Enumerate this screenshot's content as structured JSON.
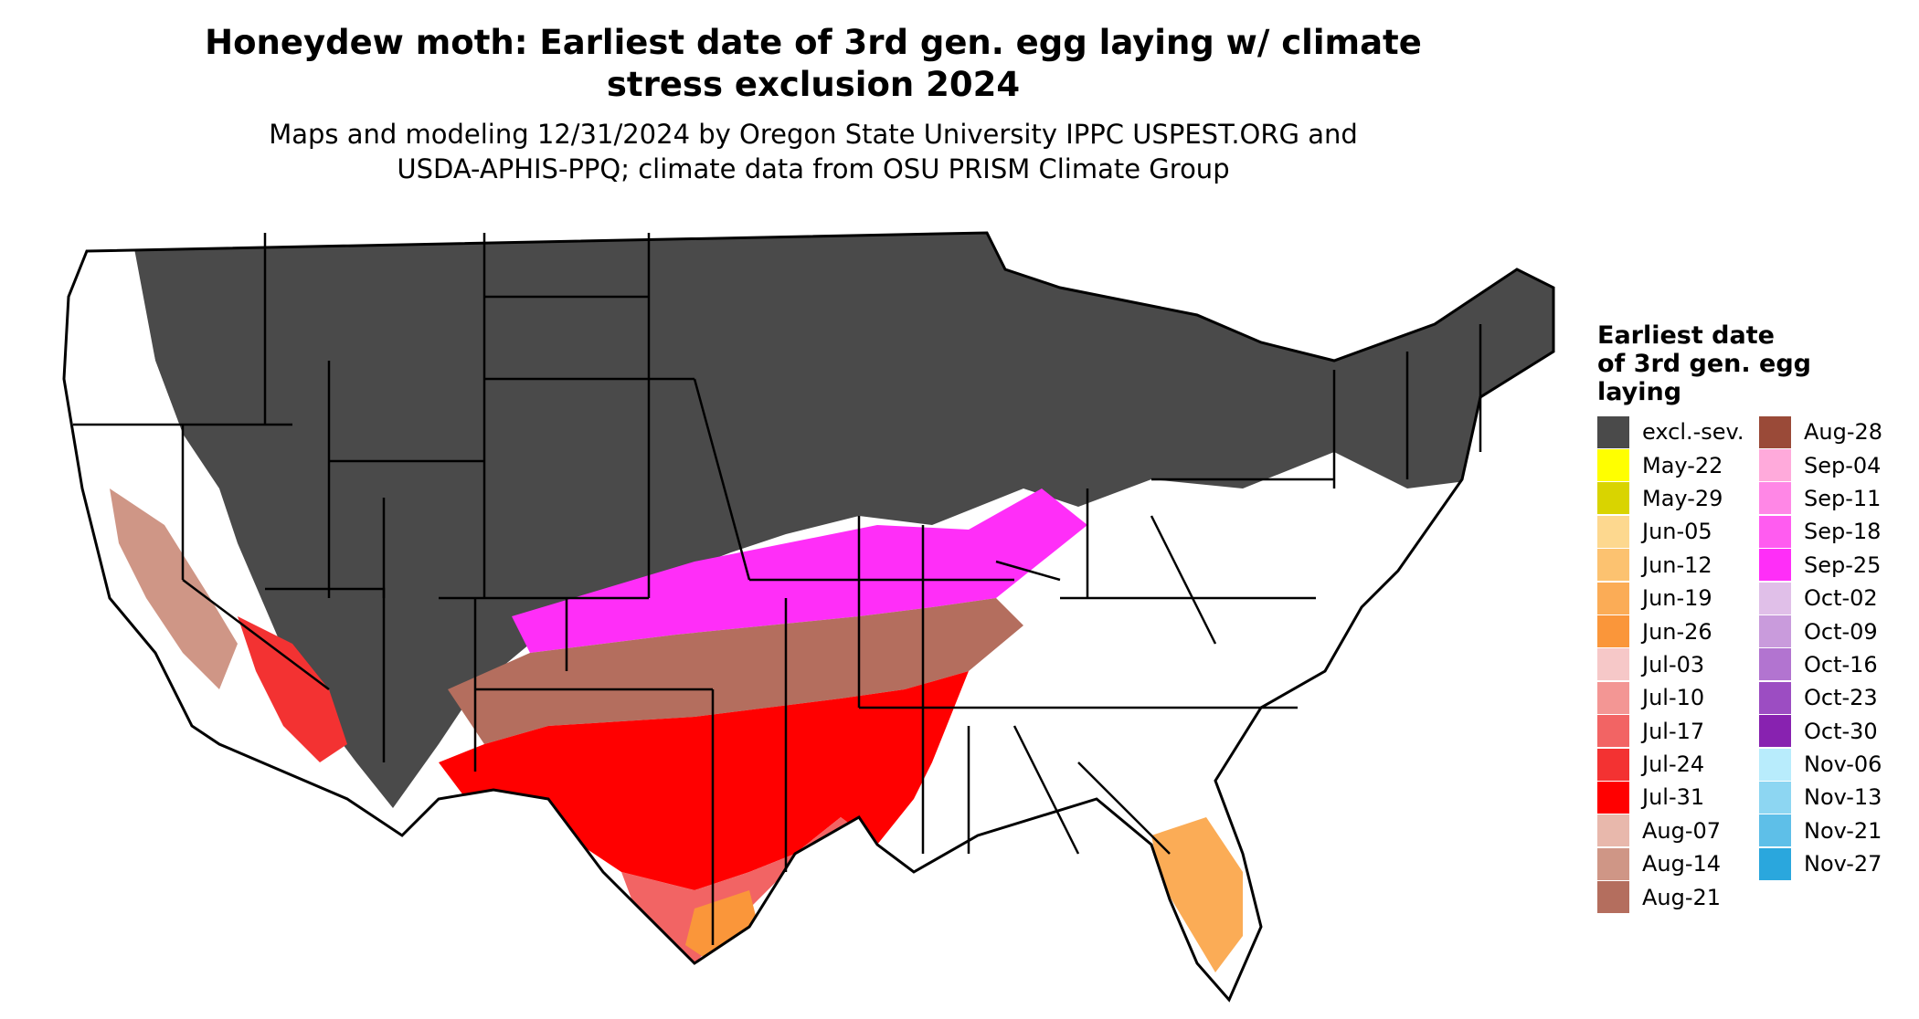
{
  "title_line1": "Honeydew moth: Earliest date of 3rd gen. egg laying w/ climate",
  "title_line2": "stress exclusion 2024",
  "subtitle_line1": "Maps and modeling 12/31/2024 by Oregon State University IPPC USPEST.ORG and",
  "subtitle_line2": "USDA-APHIS-PPQ; climate data from OSU PRISM Climate Group",
  "legend": {
    "title_line1": "Earliest date",
    "title_line2": "of 3rd gen. egg",
    "title_line3": "laying",
    "col1": [
      {
        "label": "excl.-sev.",
        "color": "#4a4a4a"
      },
      {
        "label": "May-22",
        "color": "#ffff00"
      },
      {
        "label": "May-29",
        "color": "#d9d400"
      },
      {
        "label": "Jun-05",
        "color": "#fdd88f"
      },
      {
        "label": "Jun-12",
        "color": "#fcc270"
      },
      {
        "label": "Jun-19",
        "color": "#fbac56"
      },
      {
        "label": "Jun-26",
        "color": "#fa963a"
      },
      {
        "label": "Jul-03",
        "color": "#f6c8c8"
      },
      {
        "label": "Jul-10",
        "color": "#f39694"
      },
      {
        "label": "Jul-17",
        "color": "#f26464"
      },
      {
        "label": "Jul-24",
        "color": "#f33232"
      },
      {
        "label": "Jul-31",
        "color": "#ff0000"
      },
      {
        "label": "Aug-07",
        "color": "#e8b8ac"
      },
      {
        "label": "Aug-14",
        "color": "#cf9686"
      },
      {
        "label": "Aug-21",
        "color": "#b46e5e"
      }
    ],
    "col2": [
      {
        "label": "Aug-28",
        "color": "#9a4a38"
      },
      {
        "label": "Sep-04",
        "color": "#ffaadb"
      },
      {
        "label": "Sep-11",
        "color": "#ff87e6"
      },
      {
        "label": "Sep-18",
        "color": "#ff5cf0"
      },
      {
        "label": "Sep-25",
        "color": "#ff2ef8"
      },
      {
        "label": "Oct-02",
        "color": "#e0bfe8"
      },
      {
        "label": "Oct-09",
        "color": "#c99bdc"
      },
      {
        "label": "Oct-16",
        "color": "#b274d0"
      },
      {
        "label": "Oct-23",
        "color": "#9c4dc2"
      },
      {
        "label": "Oct-30",
        "color": "#8822b0"
      },
      {
        "label": "Nov-06",
        "color": "#b8ecfc"
      },
      {
        "label": "Nov-13",
        "color": "#8dd6f2"
      },
      {
        "label": "Nov-21",
        "color": "#5ebfe8"
      },
      {
        "label": "Nov-27",
        "color": "#2aa7dd"
      }
    ]
  }
}
